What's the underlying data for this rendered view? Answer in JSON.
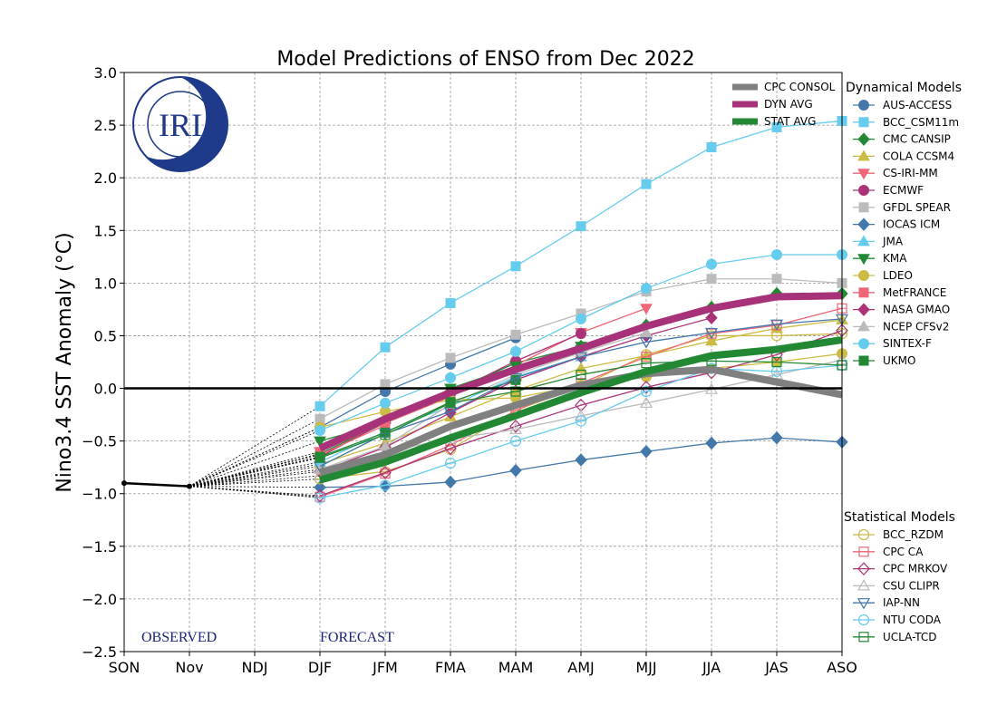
{
  "chart_data": {
    "type": "line",
    "title": "Model Predictions of ENSO from Dec 2022",
    "xlabel": "",
    "ylabel": "Nino3.4 SST Anomaly (°C)",
    "ylim": [
      -2.5,
      3.0
    ],
    "yticks": [
      3.0,
      2.5,
      2.0,
      1.5,
      1.0,
      0.5,
      0.0,
      -0.5,
      -1.0,
      -1.5,
      -2.0,
      -2.5
    ],
    "ytick_labels": [
      "3.0",
      "2.5",
      "2.0",
      "1.5",
      "1.0",
      "0.5",
      "0.0",
      "−0.5",
      "−1.0",
      "−1.5",
      "−2.0",
      "−2.5"
    ],
    "categories": [
      "SON",
      "Nov",
      "NDJ",
      "DJF",
      "JFM",
      "FMA",
      "MAM",
      "AMJ",
      "MJJ",
      "JJA",
      "JAS",
      "ASO"
    ],
    "grid": true,
    "annotations": {
      "observed": "OBSERVED",
      "forecast": "FORECAST",
      "logo": "IRI"
    },
    "observed": {
      "categories": [
        "SON",
        "Nov"
      ],
      "values": [
        -0.9,
        -0.93
      ]
    },
    "averages_legend_position": "top-right inside",
    "averages": [
      {
        "name": "CPC CONSOL",
        "color": "#808080",
        "values": [
          null,
          null,
          null,
          -0.8,
          -0.63,
          -0.36,
          -0.16,
          0.03,
          0.14,
          0.18,
          0.06,
          -0.06
        ]
      },
      {
        "name": "DYN AVG",
        "color": "#a83279",
        "values": [
          null,
          null,
          null,
          -0.57,
          -0.29,
          -0.04,
          0.18,
          0.38,
          0.59,
          0.76,
          0.87,
          0.88
        ]
      },
      {
        "name": "STAT AVG",
        "color": "#228833",
        "values": [
          null,
          null,
          null,
          -0.87,
          -0.7,
          -0.47,
          -0.26,
          -0.04,
          0.16,
          0.31,
          0.37,
          0.46
        ]
      }
    ],
    "dynamical_legend_title": "Dynamical Models",
    "dynamical": [
      {
        "name": "AUS-ACCESS",
        "color": "#4477aa",
        "marker": "circle",
        "filled": true,
        "values": [
          null,
          null,
          null,
          -0.37,
          -0.03,
          0.23,
          0.48,
          null,
          null,
          null,
          null,
          null
        ]
      },
      {
        "name": "BCC_CSM11m",
        "color": "#66ccee",
        "marker": "square",
        "filled": true,
        "values": [
          null,
          null,
          null,
          -0.17,
          0.39,
          0.81,
          1.16,
          1.54,
          1.94,
          2.29,
          2.48,
          2.54
        ]
      },
      {
        "name": "CMC CANSIP",
        "color": "#228833",
        "marker": "diamond",
        "filled": true,
        "values": [
          null,
          null,
          null,
          -0.62,
          -0.33,
          -0.03,
          0.24,
          0.4,
          0.6,
          0.77,
          0.9,
          0.9
        ]
      },
      {
        "name": "COLA CCSM4",
        "color": "#ccbb44",
        "marker": "triangle-up",
        "filled": true,
        "values": [
          null,
          null,
          null,
          -0.72,
          -0.52,
          -0.27,
          -0.02,
          0.19,
          0.31,
          0.45,
          0.57,
          0.65
        ]
      },
      {
        "name": "CS-IRI-MM",
        "color": "#ee6677",
        "marker": "triangle-down",
        "filled": true,
        "values": [
          null,
          null,
          null,
          -0.6,
          -0.33,
          -0.08,
          0.22,
          0.53,
          0.76,
          null,
          null,
          null
        ]
      },
      {
        "name": "ECMWF",
        "color": "#aa3377",
        "marker": "circle",
        "filled": true,
        "values": [
          null,
          null,
          null,
          -0.65,
          -0.32,
          -0.05,
          0.26,
          0.52,
          null,
          null,
          null,
          null
        ]
      },
      {
        "name": "GFDL SPEAR",
        "color": "#bbbbbb",
        "marker": "square",
        "filled": true,
        "values": [
          null,
          null,
          null,
          -0.29,
          0.04,
          0.29,
          0.51,
          0.71,
          0.92,
          1.04,
          1.04,
          1.0
        ]
      },
      {
        "name": "IOCAS ICM",
        "color": "#4477aa",
        "marker": "diamond",
        "filled": true,
        "values": [
          null,
          null,
          null,
          -0.94,
          -0.93,
          -0.89,
          -0.78,
          -0.68,
          -0.6,
          -0.52,
          -0.47,
          -0.51
        ]
      },
      {
        "name": "JMA",
        "color": "#66ccee",
        "marker": "triangle-up",
        "filled": true,
        "values": [
          null,
          null,
          null,
          -0.7,
          -0.41,
          -0.17,
          0.11,
          0.3,
          null,
          null,
          null,
          null
        ]
      },
      {
        "name": "KMA",
        "color": "#228833",
        "marker": "triangle-down",
        "filled": true,
        "values": [
          null,
          null,
          null,
          -0.5,
          -0.33,
          0.0,
          0.21,
          0.4,
          null,
          null,
          null,
          null
        ]
      },
      {
        "name": "LDEO",
        "color": "#ccbb44",
        "marker": "circle",
        "filled": true,
        "values": [
          null,
          null,
          null,
          -0.37,
          -0.22,
          -0.11,
          -0.09,
          0.03,
          0.11,
          0.19,
          0.25,
          0.33
        ]
      },
      {
        "name": "MetFRANCE",
        "color": "#ee6677",
        "marker": "square",
        "filled": true,
        "values": [
          null,
          null,
          null,
          -0.63,
          -0.35,
          null,
          null,
          null,
          null,
          null,
          null,
          null
        ]
      },
      {
        "name": "NASA GMAO",
        "color": "#aa3377",
        "marker": "diamond",
        "filled": true,
        "values": [
          null,
          null,
          null,
          -0.79,
          -0.56,
          -0.23,
          0.08,
          0.3,
          0.5,
          0.67,
          null,
          null
        ]
      },
      {
        "name": "NCEP CFSv2",
        "color": "#bbbbbb",
        "marker": "triangle-up",
        "filled": true,
        "values": [
          null,
          null,
          null,
          -0.77,
          -0.55,
          -0.15,
          0.13,
          0.34,
          0.53,
          null,
          null,
          null
        ]
      },
      {
        "name": "SINTEX-F",
        "color": "#66ccee",
        "marker": "circle",
        "filled": true,
        "values": [
          null,
          null,
          null,
          -0.4,
          -0.14,
          0.1,
          0.35,
          0.66,
          0.95,
          1.18,
          1.27,
          1.27
        ]
      },
      {
        "name": "UKMO",
        "color": "#228833",
        "marker": "square",
        "filled": true,
        "values": [
          null,
          null,
          null,
          -0.65,
          -0.42,
          -0.13,
          0.08,
          null,
          null,
          null,
          null,
          null
        ]
      }
    ],
    "statistical_legend_title": "Statistical Models",
    "statistical": [
      {
        "name": "BCC_RZDM",
        "color": "#ccbb44",
        "marker": "circle",
        "filled": false,
        "values": [
          null,
          null,
          null,
          -0.86,
          -0.79,
          -0.58,
          -0.21,
          0.02,
          0.32,
          0.5,
          0.5,
          0.52
        ]
      },
      {
        "name": "CPC CA",
        "color": "#ee6677",
        "marker": "square",
        "filled": false,
        "values": [
          null,
          null,
          null,
          -1.03,
          -0.81,
          -0.54,
          -0.21,
          0.05,
          0.3,
          0.52,
          0.6,
          0.76
        ]
      },
      {
        "name": "CPC MRKOV",
        "color": "#aa3377",
        "marker": "diamond",
        "filled": false,
        "values": [
          null,
          null,
          null,
          -1.02,
          -0.8,
          -0.57,
          -0.36,
          -0.16,
          0.01,
          0.15,
          0.32,
          0.55
        ]
      },
      {
        "name": "CSU CLIPR",
        "color": "#bbbbbb",
        "marker": "triangle-up",
        "filled": false,
        "values": [
          null,
          null,
          null,
          -0.83,
          -0.6,
          -0.48,
          -0.39,
          -0.26,
          -0.14,
          -0.01,
          0.13,
          0.27
        ]
      },
      {
        "name": "IAP-NN",
        "color": "#4477aa",
        "marker": "triangle-down",
        "filled": false,
        "values": [
          null,
          null,
          null,
          -0.74,
          -0.43,
          -0.22,
          0.1,
          0.3,
          0.44,
          0.53,
          0.61,
          0.66
        ]
      },
      {
        "name": "NTU CODA",
        "color": "#66ccee",
        "marker": "circle",
        "filled": false,
        "values": [
          null,
          null,
          null,
          -1.04,
          -0.92,
          -0.71,
          -0.5,
          -0.31,
          -0.03,
          0.19,
          0.16,
          0.22
        ]
      },
      {
        "name": "UCLA-TCD",
        "color": "#228833",
        "marker": "square",
        "filled": false,
        "values": [
          null,
          null,
          null,
          -0.66,
          -0.44,
          -0.14,
          -0.03,
          0.13,
          0.24,
          0.26,
          0.25,
          0.22
        ]
      }
    ]
  }
}
